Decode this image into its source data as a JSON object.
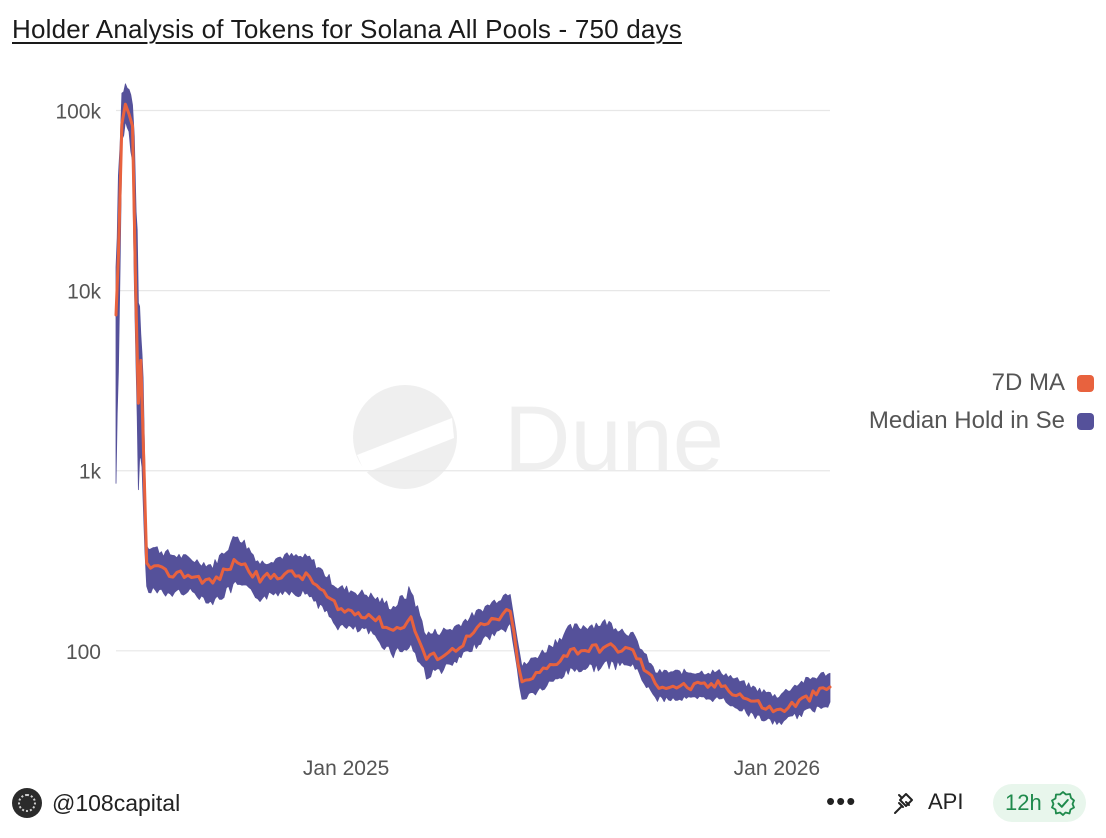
{
  "header": {
    "title": "Holder Analysis of Tokens for Solana All Pools - 750 days"
  },
  "watermark": "Dune",
  "legend": {
    "items": [
      {
        "label": "7D MA",
        "color": "#e8623e"
      },
      {
        "label": "Median Hold in Se",
        "color": "#55519a"
      }
    ]
  },
  "footer": {
    "author": "@108capital",
    "more_label": "•••",
    "api_label": "API",
    "refresh_label": "12h"
  },
  "chart_data": {
    "type": "line",
    "title": "Holder Analysis of Tokens for Solana All Pools - 750 days",
    "y_scale": "log",
    "ylim": [
      30,
      130000
    ],
    "y_ticks": [
      {
        "value": 100,
        "label": "100"
      },
      {
        "value": 1000,
        "label": "1k"
      },
      {
        "value": 10000,
        "label": "10k"
      },
      {
        "value": 100000,
        "label": "100k"
      }
    ],
    "x_range": [
      "2024-06-20",
      "2026-02-15"
    ],
    "x_ticks": [
      {
        "value": "2025-01-01",
        "label": "Jan 2025"
      },
      {
        "value": "2026-01-01",
        "label": "Jan 2026"
      }
    ],
    "grid": true,
    "legend_position": "right",
    "series": [
      {
        "name": "Median Hold in Se",
        "color": "#55519a",
        "style": "band",
        "points": [
          {
            "x": "2024-06-20",
            "lo": 1000,
            "hi": 12000
          },
          {
            "x": "2024-06-22",
            "lo": 4000,
            "hi": 40000
          },
          {
            "x": "2024-06-25",
            "lo": 70000,
            "hi": 120000
          },
          {
            "x": "2024-06-28",
            "lo": 85000,
            "hi": 135000
          },
          {
            "x": "2024-07-01",
            "lo": 75000,
            "hi": 125000
          },
          {
            "x": "2024-07-04",
            "lo": 50000,
            "hi": 110000
          },
          {
            "x": "2024-07-07",
            "lo": 4000,
            "hi": 30000
          },
          {
            "x": "2024-07-09",
            "lo": 900,
            "hi": 8000
          },
          {
            "x": "2024-07-11",
            "lo": 1500,
            "hi": 6000
          },
          {
            "x": "2024-07-13",
            "lo": 700,
            "hi": 3000
          },
          {
            "x": "2024-07-16",
            "lo": 230,
            "hi": 380
          },
          {
            "x": "2024-08-01",
            "lo": 210,
            "hi": 340
          },
          {
            "x": "2024-08-20",
            "lo": 220,
            "hi": 320
          },
          {
            "x": "2024-09-10",
            "lo": 190,
            "hi": 290
          },
          {
            "x": "2024-10-01",
            "lo": 240,
            "hi": 430
          },
          {
            "x": "2024-10-20",
            "lo": 200,
            "hi": 300
          },
          {
            "x": "2024-11-10",
            "lo": 220,
            "hi": 330
          },
          {
            "x": "2024-12-01",
            "lo": 210,
            "hi": 320
          },
          {
            "x": "2024-12-25",
            "lo": 140,
            "hi": 220
          },
          {
            "x": "2025-01-20",
            "lo": 130,
            "hi": 200
          },
          {
            "x": "2025-02-10",
            "lo": 100,
            "hi": 170
          },
          {
            "x": "2025-02-25",
            "lo": 110,
            "hi": 210
          },
          {
            "x": "2025-03-10",
            "lo": 75,
            "hi": 120
          },
          {
            "x": "2025-04-01",
            "lo": 85,
            "hi": 130
          },
          {
            "x": "2025-04-25",
            "lo": 115,
            "hi": 165
          },
          {
            "x": "2025-05-20",
            "lo": 140,
            "hi": 210
          },
          {
            "x": "2025-05-30",
            "lo": 55,
            "hi": 80
          },
          {
            "x": "2025-06-20",
            "lo": 65,
            "hi": 100
          },
          {
            "x": "2025-07-10",
            "lo": 80,
            "hi": 130
          },
          {
            "x": "2025-08-10",
            "lo": 85,
            "hi": 140
          },
          {
            "x": "2025-09-01",
            "lo": 85,
            "hi": 120
          },
          {
            "x": "2025-09-20",
            "lo": 55,
            "hi": 75
          },
          {
            "x": "2025-10-20",
            "lo": 55,
            "hi": 75
          },
          {
            "x": "2025-11-15",
            "lo": 55,
            "hi": 75
          },
          {
            "x": "2025-12-10",
            "lo": 45,
            "hi": 62
          },
          {
            "x": "2026-01-01",
            "lo": 40,
            "hi": 55
          },
          {
            "x": "2026-01-20",
            "lo": 45,
            "hi": 65
          },
          {
            "x": "2026-02-15",
            "lo": 52,
            "hi": 75
          }
        ]
      },
      {
        "name": "7D MA",
        "color": "#e8623e",
        "style": "line",
        "points": [
          {
            "x": "2024-06-20",
            "y": 7000
          },
          {
            "x": "2024-06-22",
            "y": 15000
          },
          {
            "x": "2024-06-25",
            "y": 80000
          },
          {
            "x": "2024-06-28",
            "y": 105000
          },
          {
            "x": "2024-07-01",
            "y": 95000
          },
          {
            "x": "2024-07-04",
            "y": 80000
          },
          {
            "x": "2024-07-07",
            "y": 8000
          },
          {
            "x": "2024-07-09",
            "y": 2500
          },
          {
            "x": "2024-07-11",
            "y": 4000
          },
          {
            "x": "2024-07-13",
            "y": 1500
          },
          {
            "x": "2024-07-16",
            "y": 300
          },
          {
            "x": "2024-08-01",
            "y": 270
          },
          {
            "x": "2024-08-20",
            "y": 265
          },
          {
            "x": "2024-09-10",
            "y": 240
          },
          {
            "x": "2024-10-01",
            "y": 320
          },
          {
            "x": "2024-10-20",
            "y": 250
          },
          {
            "x": "2024-11-10",
            "y": 270
          },
          {
            "x": "2024-12-01",
            "y": 255
          },
          {
            "x": "2024-12-25",
            "y": 170
          },
          {
            "x": "2025-01-20",
            "y": 160
          },
          {
            "x": "2025-02-10",
            "y": 130
          },
          {
            "x": "2025-02-25",
            "y": 150
          },
          {
            "x": "2025-03-10",
            "y": 90
          },
          {
            "x": "2025-04-01",
            "y": 100
          },
          {
            "x": "2025-04-25",
            "y": 135
          },
          {
            "x": "2025-05-20",
            "y": 165
          },
          {
            "x": "2025-05-30",
            "y": 65
          },
          {
            "x": "2025-06-20",
            "y": 80
          },
          {
            "x": "2025-07-10",
            "y": 100
          },
          {
            "x": "2025-08-10",
            "y": 105
          },
          {
            "x": "2025-09-01",
            "y": 100
          },
          {
            "x": "2025-09-20",
            "y": 65
          },
          {
            "x": "2025-10-20",
            "y": 63
          },
          {
            "x": "2025-11-15",
            "y": 65
          },
          {
            "x": "2025-12-10",
            "y": 53
          },
          {
            "x": "2026-01-01",
            "y": 46
          },
          {
            "x": "2026-01-20",
            "y": 52
          },
          {
            "x": "2026-02-15",
            "y": 63
          }
        ]
      }
    ]
  }
}
